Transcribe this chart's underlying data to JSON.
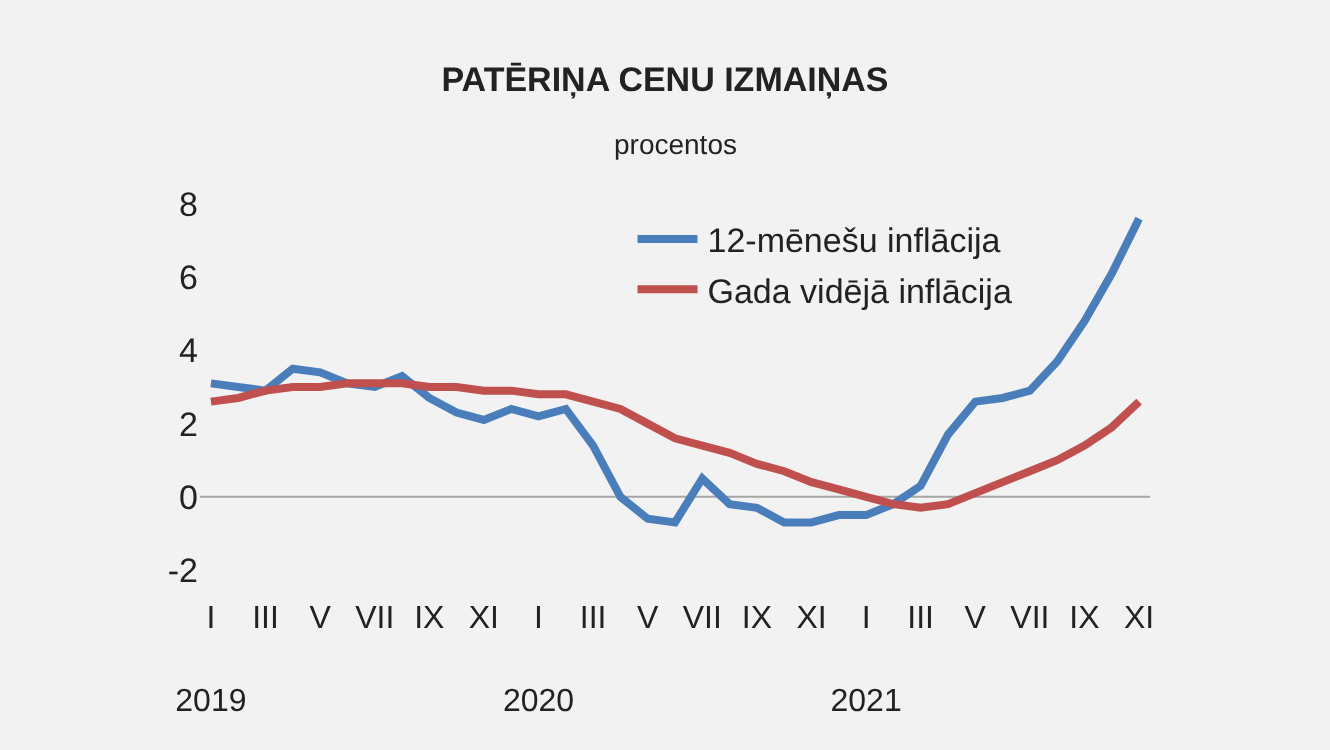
{
  "chart_data": {
    "type": "line",
    "title": "PATĒRIŅA CENU IZMAIŅAS",
    "subtitle": "procentos",
    "categories": [
      "I\n\n2019",
      null,
      "III",
      null,
      "V",
      null,
      "VII",
      null,
      "IX",
      null,
      "XI",
      null,
      "I\n\n2020",
      null,
      "III",
      null,
      "V",
      null,
      "VII",
      null,
      "IX",
      null,
      "XI",
      null,
      "I\n\n2021",
      null,
      "III",
      null,
      "V",
      null,
      "VII",
      null,
      "IX",
      null,
      "XI"
    ],
    "series": [
      {
        "name": "12-mēnešu inflācija",
        "color": "#4a7ebb",
        "values": [
          3.1,
          3.0,
          2.9,
          3.5,
          3.4,
          3.1,
          3.0,
          3.3,
          2.7,
          2.3,
          2.1,
          2.4,
          2.2,
          2.4,
          1.4,
          0.0,
          -0.6,
          -0.7,
          0.5,
          -0.2,
          -0.3,
          -0.7,
          -0.7,
          -0.5,
          -0.5,
          -0.2,
          0.3,
          1.7,
          2.6,
          2.7,
          2.9,
          3.7,
          4.8,
          6.1,
          7.6
        ]
      },
      {
        "name": "Gada vidējā inflācija",
        "color": "#c0504d",
        "values": [
          2.6,
          2.7,
          2.9,
          3.0,
          3.0,
          3.1,
          3.1,
          3.1,
          3.0,
          3.0,
          2.9,
          2.9,
          2.8,
          2.8,
          2.6,
          2.4,
          2.0,
          1.6,
          1.4,
          1.2,
          0.9,
          0.7,
          0.4,
          0.2,
          0.0,
          -0.2,
          -0.3,
          -0.2,
          0.1,
          0.4,
          0.7,
          1.0,
          1.4,
          1.9,
          2.6
        ]
      }
    ],
    "ylim": [
      -2,
      8
    ],
    "yticks": [
      -2,
      0,
      2,
      4,
      6,
      8
    ],
    "ref_lines": [
      {
        "axis": "y",
        "value": 0,
        "color": "#a6a6a6"
      }
    ],
    "grid": false,
    "legend": "top right",
    "marker": "none",
    "line_style": "solid"
  }
}
